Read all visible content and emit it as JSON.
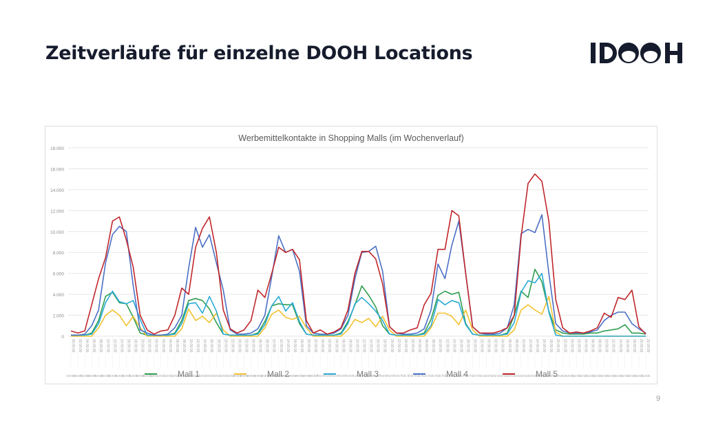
{
  "slide": {
    "title": "Zeitverläufe für einzelne DOOH Locations",
    "logo_text": "IDOOH",
    "page_number": "9"
  },
  "colors": {
    "title": "#161c2d",
    "logo": "#161c2d",
    "grid": "#e6e6e6",
    "mall1": "#2e9e4f",
    "mall2": "#f2c12e",
    "mall3": "#2aa9d6",
    "mall4": "#4a6fc4",
    "mall5": "#c0262b"
  },
  "chart_data": {
    "type": "line",
    "title": "Werbemittelkontakte in Shopping Malls (im Wochenverlauf)",
    "xlabel": "",
    "ylabel": "",
    "ylim": [
      0,
      18000
    ],
    "y_ticks": [
      "0",
      "2.000",
      "4.000",
      "6.000",
      "8.000",
      "10.000",
      "12.000",
      "14.000",
      "16.000",
      "18.000"
    ],
    "grid": true,
    "legend_position": "bottom",
    "x_tick_labels": [
      "00:00:00",
      "02:00:00",
      "04:00:00",
      "06:00:00",
      "08:00:00",
      "10:00:00",
      "12:00:00",
      "14:00:00",
      "16:00:00",
      "18:00:00",
      "20:00:00",
      "22:00:00"
    ],
    "days": [
      "monday",
      "tuesday",
      "wednesday",
      "thursday",
      "friday",
      "saturday",
      "sunday"
    ],
    "x_interval": "2h",
    "series": [
      {
        "name": "Mall 1",
        "values": [
          100,
          100,
          100,
          300,
          1500,
          3800,
          4200,
          3200,
          3100,
          1800,
          300,
          100,
          100,
          100,
          100,
          300,
          1500,
          3400,
          3600,
          3400,
          2600,
          1300,
          200,
          100,
          100,
          100,
          100,
          300,
          1400,
          2900,
          3100,
          3000,
          3000,
          1200,
          200,
          100,
          100,
          100,
          100,
          300,
          1400,
          3000,
          4800,
          3900,
          2800,
          1000,
          200,
          100,
          100,
          100,
          100,
          300,
          1600,
          3900,
          4300,
          4000,
          4200,
          1200,
          200,
          100,
          100,
          100,
          100,
          300,
          2000,
          4300,
          3700,
          6400,
          5200,
          2400,
          600,
          300,
          200,
          200,
          200,
          300,
          300,
          500,
          600,
          700,
          1100,
          300,
          300,
          200
        ]
      },
      {
        "name": "Mall 2",
        "values": [
          0,
          0,
          0,
          0,
          800,
          2000,
          2500,
          2000,
          1000,
          1900,
          800,
          0,
          0,
          0,
          0,
          0,
          700,
          2600,
          1500,
          1900,
          1300,
          2200,
          600,
          0,
          0,
          0,
          0,
          0,
          800,
          2100,
          2500,
          1800,
          1600,
          1900,
          800,
          0,
          0,
          0,
          0,
          0,
          600,
          1600,
          1300,
          1700,
          900,
          1900,
          600,
          0,
          0,
          0,
          0,
          0,
          800,
          2200,
          2200,
          1900,
          1100,
          2500,
          600,
          0,
          0,
          0,
          0,
          0,
          600,
          2500,
          3000,
          2500,
          2100,
          3800,
          400,
          0,
          0,
          0,
          0,
          0,
          0,
          0,
          0,
          0,
          0,
          0,
          0,
          0
        ]
      },
      {
        "name": "Mall 3",
        "values": [
          100,
          100,
          100,
          200,
          1200,
          3200,
          4300,
          3300,
          3100,
          3400,
          1600,
          100,
          100,
          100,
          100,
          200,
          1200,
          3100,
          3200,
          2200,
          3800,
          2400,
          200,
          100,
          100,
          100,
          100,
          200,
          1100,
          2900,
          3800,
          2400,
          3200,
          1400,
          200,
          100,
          100,
          100,
          100,
          200,
          1200,
          3100,
          3700,
          3100,
          2400,
          1500,
          200,
          100,
          100,
          100,
          100,
          200,
          1000,
          3500,
          3000,
          3400,
          3200,
          1100,
          200,
          100,
          100,
          100,
          100,
          200,
          1300,
          4200,
          5300,
          5100,
          6000,
          2300,
          100,
          0,
          0,
          0,
          0,
          0,
          0,
          0,
          0,
          0,
          0,
          0,
          0,
          0
        ]
      },
      {
        "name": "Mall 4",
        "values": [
          100,
          100,
          200,
          1000,
          2500,
          7000,
          9700,
          10500,
          10000,
          4800,
          600,
          300,
          100,
          100,
          200,
          800,
          2000,
          6500,
          10400,
          8500,
          9700,
          7000,
          4400,
          600,
          200,
          200,
          300,
          700,
          2000,
          5700,
          9600,
          8000,
          8300,
          6200,
          1000,
          300,
          200,
          200,
          300,
          700,
          2000,
          5500,
          8000,
          8100,
          8600,
          6200,
          900,
          300,
          200,
          200,
          300,
          700,
          2500,
          6900,
          5500,
          8700,
          11000,
          6000,
          900,
          300,
          200,
          200,
          300,
          800,
          3000,
          9800,
          10200,
          9900,
          11600,
          6000,
          1200,
          500,
          300,
          300,
          300,
          400,
          600,
          1500,
          2000,
          2300,
          2300,
          1200,
          700,
          300
        ]
      },
      {
        "name": "Mall 5",
        "values": [
          500,
          300,
          500,
          3000,
          5500,
          7500,
          11000,
          11400,
          9200,
          6600,
          2000,
          600,
          200,
          500,
          600,
          2000,
          4600,
          4000,
          8500,
          10300,
          11400,
          8000,
          2500,
          700,
          300,
          600,
          1500,
          4400,
          3700,
          6000,
          8500,
          8000,
          8300,
          7300,
          1500,
          300,
          600,
          200,
          400,
          800,
          2500,
          6000,
          8100,
          8100,
          7400,
          5000,
          900,
          300,
          300,
          600,
          800,
          3000,
          4100,
          8300,
          8300,
          12000,
          11500,
          6000,
          900,
          300,
          300,
          300,
          500,
          800,
          2000,
          9500,
          14600,
          15500,
          14800,
          11000,
          3500,
          800,
          300,
          400,
          300,
          500,
          800,
          2200,
          1800,
          3700,
          3500,
          4400,
          900,
          200
        ]
      }
    ]
  }
}
